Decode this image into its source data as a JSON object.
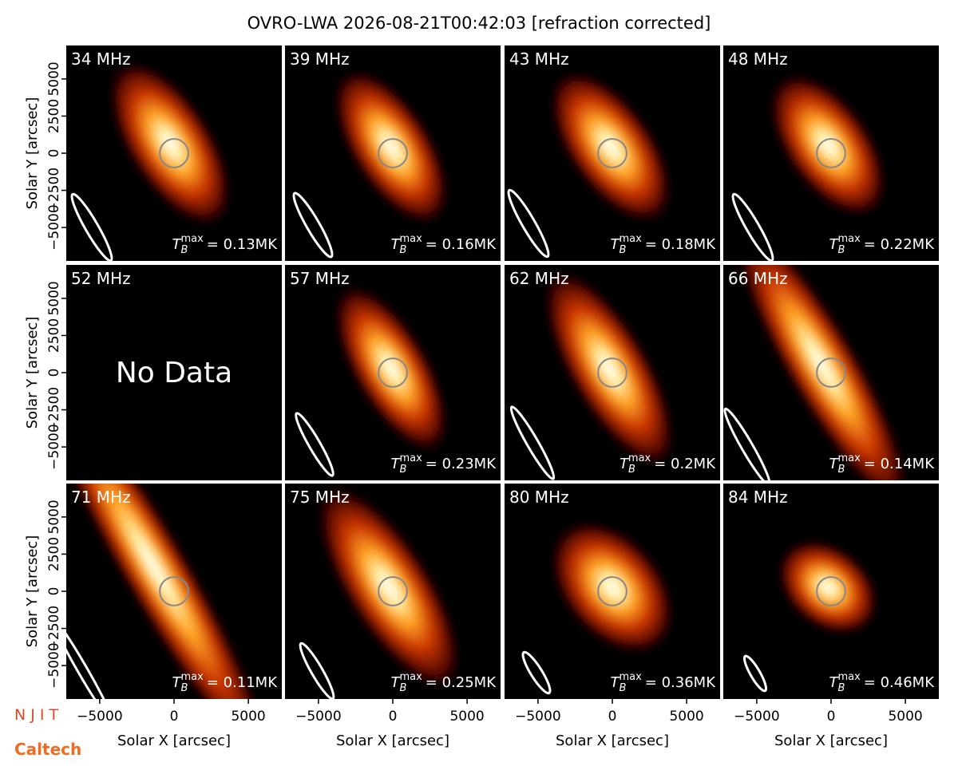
{
  "title": "OVRO-LWA 2026-08-21T00:42:03 [refraction corrected]",
  "axes": {
    "xlabel": "Solar X [arcsec]",
    "ylabel": "Solar Y [arcsec]",
    "xlim": [
      -7250,
      7250
    ],
    "ylim": [
      -7250,
      7250
    ],
    "xticks": [
      {
        "value": -5000,
        "label": "−5000"
      },
      0,
      5000
    ],
    "yticks": [
      {
        "value": -5000,
        "label": "−5000"
      },
      {
        "value": -2500,
        "label": "−2500"
      },
      0,
      2500,
      5000
    ]
  },
  "tmax_symbol": {
    "base": "T",
    "sub": "B",
    "sup": "max"
  },
  "logos": [
    "N J I T",
    "Caltech"
  ],
  "chart_data": [
    {
      "type": "image",
      "title": "34 MHz",
      "annotation": "= 0.13MK"
    },
    {
      "type": "image",
      "title": "39 MHz",
      "annotation": "= 0.16MK"
    },
    {
      "type": "image",
      "title": "43 MHz",
      "annotation": "= 0.18MK"
    },
    {
      "type": "image",
      "title": "48 MHz",
      "annotation": "= 0.22MK"
    },
    {
      "type": "image",
      "title": "52 MHz",
      "note": "No Data"
    },
    {
      "type": "image",
      "title": "57 MHz",
      "annotation": "= 0.23MK"
    },
    {
      "type": "image",
      "title": "62 MHz",
      "annotation": "= 0.2MK"
    },
    {
      "type": "image",
      "title": "66 MHz",
      "annotation": "= 0.14MK"
    },
    {
      "type": "image",
      "title": "71 MHz",
      "annotation": "= 0.11MK"
    },
    {
      "type": "image",
      "title": "75 MHz",
      "annotation": "= 0.25MK"
    },
    {
      "type": "image",
      "title": "80 MHz",
      "annotation": "= 0.36MK"
    },
    {
      "type": "image",
      "title": "84 MHz",
      "annotation": "= 0.46MK"
    }
  ]
}
